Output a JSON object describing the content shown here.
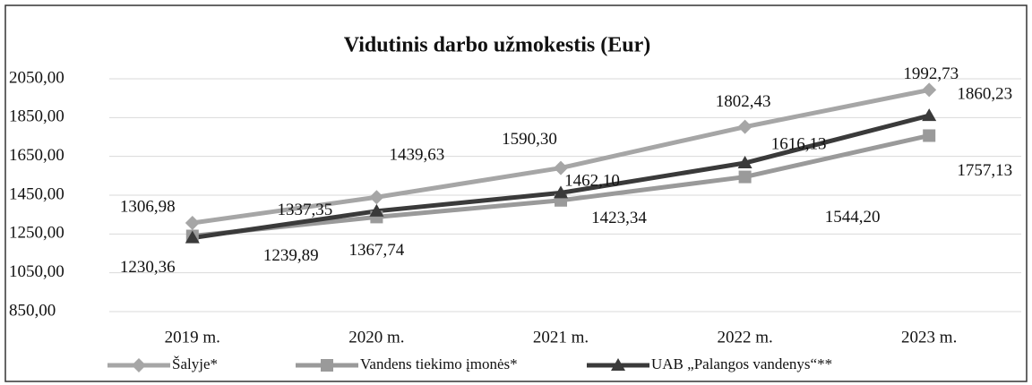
{
  "chart_data": {
    "type": "line",
    "title": "Vidutinis darbo užmokestis (Eur)",
    "categories": [
      "2019 m.",
      "2020 m.",
      "2021 m.",
      "2022 m.",
      "2023 m."
    ],
    "series": [
      {
        "name": "Šalyje*",
        "color": "#a6a6a6",
        "marker": "diamond",
        "values": [
          1306.98,
          1439.63,
          1590.3,
          1802.43,
          1992.73
        ],
        "value_labels": [
          "1306,98",
          "1439,63",
          "1590,30",
          "1802,43",
          "1992,73"
        ]
      },
      {
        "name": "Vandens tiekimo įmonės*",
        "color": "#9a9a9a",
        "marker": "square",
        "values": [
          1239.89,
          1337.35,
          1423.34,
          1544.2,
          1757.13
        ],
        "value_labels": [
          "1239,89",
          "1337,35",
          "1423,34",
          "1544,20",
          "1757,13"
        ]
      },
      {
        "name": "UAB „Palangos vandenys“**",
        "color": "#3a3a3a",
        "marker": "triangle",
        "values": [
          1230.36,
          1367.74,
          1462.1,
          1616.13,
          1860.23
        ],
        "value_labels": [
          "1230,36",
          "1367,74",
          "1462,10",
          "1616,13",
          "1860,23"
        ]
      }
    ],
    "ylim": [
      850,
      2050
    ],
    "yticks": [
      {
        "value": 850,
        "label": "850,00"
      },
      {
        "value": 1050,
        "label": "1050,00"
      },
      {
        "value": 1250,
        "label": "1250,00"
      },
      {
        "value": 1450,
        "label": "1450,00"
      },
      {
        "value": 1650,
        "label": "1650,00"
      },
      {
        "value": 1850,
        "label": "1850,00"
      },
      {
        "value": 2050,
        "label": "2050,00"
      }
    ],
    "grid": true,
    "legend": "bottom"
  }
}
